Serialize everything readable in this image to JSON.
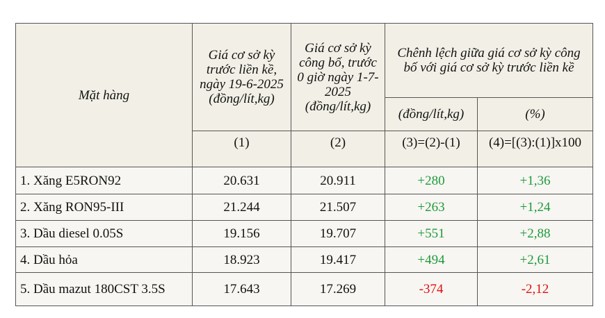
{
  "header": {
    "item": "Mặt hàng",
    "prev_price": "Giá cơ sở kỳ trước liền kề, ngày 19-6-2025 (đồng/lít,kg)",
    "new_price": "Giá cơ sở kỳ công bố, trước 0 giờ ngày 1-7-2025 (đồng/lít,kg)",
    "difference": "Chênh lệch giữa giá cơ sở kỳ công bố với giá cơ sở kỳ trước liền kề",
    "diff_abs": "(đồng/lít,kg)",
    "diff_pct": "(%)"
  },
  "index_row": [
    "(1)",
    "(2)",
    "(3)=(2)-(1)",
    "(4)=[(3):(1)]x100"
  ],
  "rows": [
    [
      "1. Xăng E5RON92",
      "20.631",
      "20.911",
      "+280",
      "+1,36"
    ],
    [
      "2. Xăng RON95-III",
      "21.244",
      "21.507",
      "+263",
      "+1,24"
    ],
    [
      "3. Dầu diesel 0.05S",
      "19.156",
      "19.707",
      "+551",
      "+2,88"
    ],
    [
      "4. Dầu hỏa",
      "18.923",
      "19.417",
      "+494",
      "+2,61"
    ],
    [
      "5. Dầu mazut 180CST 3.5S",
      "17.643",
      "17.269",
      "-374",
      "-2,12"
    ]
  ]
}
